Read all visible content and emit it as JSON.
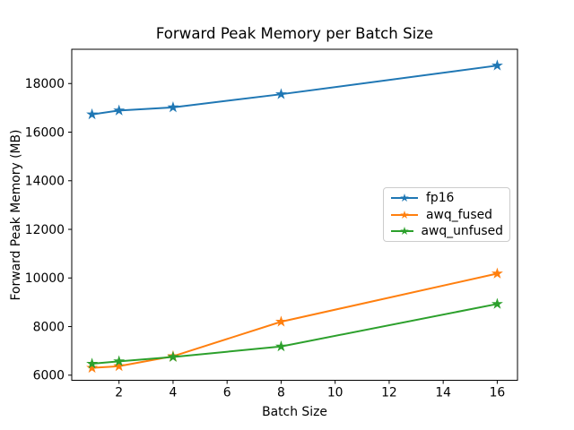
{
  "figure": {
    "title": "Forward Peak Memory per Batch Size",
    "xlabel": "Batch Size",
    "ylabel": "Forward Peak Memory (MB)"
  },
  "chart_data": {
    "type": "line",
    "title": "Forward Peak Memory per Batch Size",
    "xlabel": "Batch Size",
    "ylabel": "Forward Peak Memory (MB)",
    "x": [
      1,
      2,
      4,
      8,
      16
    ],
    "series": [
      {
        "name": "fp16",
        "color": "#1f77b4",
        "marker": "star",
        "values": [
          16730,
          16890,
          17020,
          17560,
          18740
        ]
      },
      {
        "name": "awq_fused",
        "color": "#ff7f0e",
        "marker": "star",
        "values": [
          6300,
          6370,
          6780,
          8200,
          10180
        ]
      },
      {
        "name": "awq_unfused",
        "color": "#2ca02c",
        "marker": "star",
        "values": [
          6470,
          6570,
          6750,
          7180,
          8930
        ]
      }
    ],
    "xticks": [
      2,
      4,
      6,
      8,
      10,
      12,
      14,
      16
    ],
    "yticks": [
      6000,
      8000,
      10000,
      12000,
      14000,
      16000,
      18000
    ],
    "xlim": [
      0.25,
      16.75
    ],
    "ylim": [
      5790,
      19410
    ],
    "grid": false,
    "legend": {
      "position": "center-right",
      "entries": [
        "fp16",
        "awq_fused",
        "awq_unfused"
      ]
    }
  }
}
